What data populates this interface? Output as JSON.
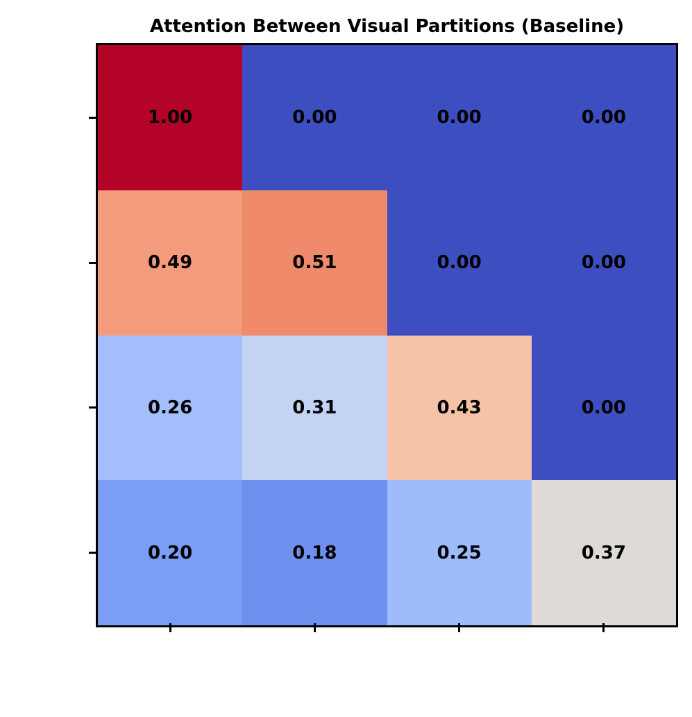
{
  "chart_data": {
    "type": "heatmap",
    "title": "Attention Between Visual Partitions (Baseline)",
    "rows": 4,
    "cols": 4,
    "values": [
      [
        1.0,
        0.0,
        0.0,
        0.0
      ],
      [
        0.49,
        0.51,
        0.0,
        0.0
      ],
      [
        0.26,
        0.31,
        0.43,
        0.0
      ],
      [
        0.2,
        0.18,
        0.25,
        0.37
      ]
    ],
    "value_labels": [
      [
        "1.00",
        "0.00",
        "0.00",
        "0.00"
      ],
      [
        "0.49",
        "0.51",
        "0.00",
        "0.00"
      ],
      [
        "0.26",
        "0.31",
        "0.43",
        "0.00"
      ],
      [
        "0.20",
        "0.18",
        "0.25",
        "0.37"
      ]
    ],
    "cell_colors": [
      [
        "#b30428",
        "#3c4ec0",
        "#3c4ec0",
        "#3c4ec0"
      ],
      [
        "#f49b7c",
        "#ef8a6a",
        "#3c4ec0",
        "#3c4ec0"
      ],
      [
        "#a2bffc",
        "#c3d3f4",
        "#f5c3a8",
        "#3c4ec0"
      ],
      [
        "#7b9df6",
        "#7090f0",
        "#9ebcfc",
        "#dedad5"
      ]
    ],
    "value_text_color": "#000000",
    "title_color": "#000000",
    "axis": {
      "spine_color": "#000000",
      "tick_color": "#000000",
      "x_tick_count": 4,
      "y_tick_count": 4,
      "x_tick_labels": [],
      "y_tick_labels": [],
      "xlabel": "",
      "ylabel": ""
    },
    "legend": "none",
    "grid": false
  }
}
